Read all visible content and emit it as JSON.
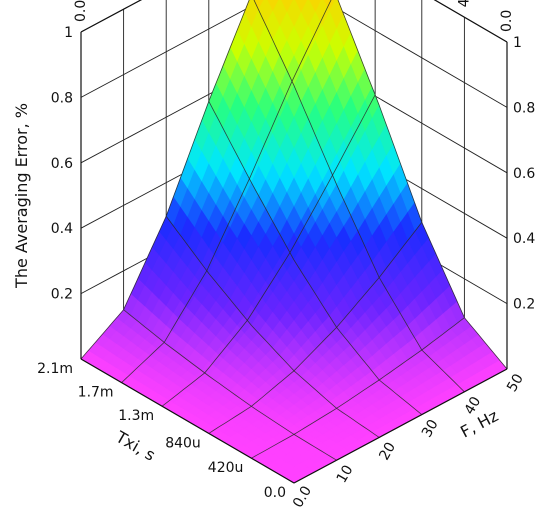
{
  "chart_data": {
    "type": "surface3d",
    "title": "",
    "x_axis": {
      "label": "F, Hz",
      "range": [
        0,
        50
      ],
      "ticks": [
        "0.0",
        "10",
        "20",
        "30",
        "40",
        "50"
      ]
    },
    "y_axis": {
      "label": "Txi, s",
      "range": [
        0,
        0.0021
      ],
      "ticks": [
        "0.0",
        "420u",
        "840u",
        "1.3m",
        "1.7m",
        "2.1m"
      ]
    },
    "z_axis": {
      "label": "The Averaging Error, %",
      "range": [
        0,
        1
      ],
      "ticks": [
        "0.2",
        "0.4",
        "0.6",
        "0.8",
        "1"
      ]
    },
    "surface": {
      "x": [
        0,
        10,
        20,
        30,
        40,
        50
      ],
      "y": [
        0,
        0.00042,
        0.00084,
        0.0013,
        0.0017,
        0.0021
      ],
      "z": [
        [
          0,
          0,
          0,
          0,
          0,
          0
        ],
        [
          0,
          0.003,
          0.013,
          0.03,
          0.052,
          0.081
        ],
        [
          0,
          0.013,
          0.052,
          0.115,
          0.198,
          0.297
        ],
        [
          0,
          0.03,
          0.115,
          0.245,
          0.406,
          0.579
        ],
        [
          0,
          0.052,
          0.198,
          0.406,
          0.633,
          0.836
        ],
        [
          0,
          0.081,
          0.297,
          0.579,
          0.836,
          1.0
        ]
      ]
    },
    "colormap": [
      "#ff40ff",
      "#6a24ff",
      "#1a2cff",
      "#00e6ff",
      "#27ff80",
      "#ccff00",
      "#ffd000",
      "#ff2a00"
    ],
    "grid": true,
    "legend": "none"
  }
}
